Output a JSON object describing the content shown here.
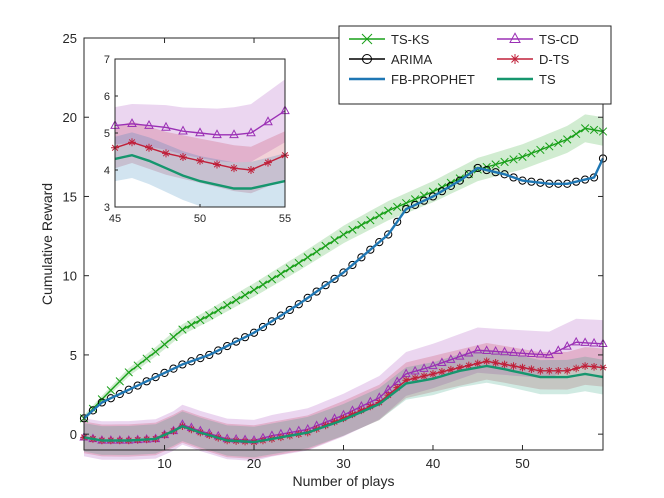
{
  "chart_data": {
    "type": "line",
    "xlabel": "Number of plays",
    "ylabel": "Cumulative Reward",
    "xlim": [
      1,
      59
    ],
    "ylim": [
      -1,
      25
    ],
    "xticks": [
      "10",
      "20",
      "30",
      "40",
      "50"
    ],
    "yticks": [
      "0",
      "5",
      "10",
      "15",
      "20",
      "25"
    ],
    "legend_position": "top-right",
    "grid": false,
    "series": [
      {
        "name": "TS-KS",
        "color": "#19a019",
        "marker": "x",
        "anchors": [
          [
            1,
            1.0
          ],
          [
            3,
            2.2
          ],
          [
            6,
            3.9
          ],
          [
            9,
            5.2
          ],
          [
            12,
            6.6
          ],
          [
            15,
            7.5
          ],
          [
            20,
            9.1
          ],
          [
            25,
            10.8
          ],
          [
            30,
            12.6
          ],
          [
            35,
            14.1
          ],
          [
            40,
            15.3
          ],
          [
            45,
            16.7
          ],
          [
            50,
            17.5
          ],
          [
            55,
            18.6
          ],
          [
            57,
            19.3
          ],
          [
            59,
            19.1
          ]
        ],
        "band": [
          0.2,
          0.9
        ]
      },
      {
        "name": "ARIMA",
        "color": "#000000",
        "marker": "circle",
        "anchors": [
          [
            1,
            1.0
          ],
          [
            3,
            2.0
          ],
          [
            6,
            2.8
          ],
          [
            9,
            3.6
          ],
          [
            12,
            4.4
          ],
          [
            15,
            5.0
          ],
          [
            20,
            6.4
          ],
          [
            25,
            8.2
          ],
          [
            30,
            10.2
          ],
          [
            35,
            12.6
          ],
          [
            37,
            14.2
          ],
          [
            40,
            15.0
          ],
          [
            43,
            16.0
          ],
          [
            45,
            16.8
          ],
          [
            48,
            16.4
          ],
          [
            50,
            16.0
          ],
          [
            53,
            15.8
          ],
          [
            55,
            15.8
          ],
          [
            58,
            16.2
          ],
          [
            59,
            17.4
          ]
        ],
        "band": null
      },
      {
        "name": "FB-PROPHET",
        "color": "#1f77b4",
        "marker": "none",
        "anchors": [
          [
            1,
            1.0
          ],
          [
            3,
            2.0
          ],
          [
            6,
            2.8
          ],
          [
            9,
            3.6
          ],
          [
            12,
            4.4
          ],
          [
            15,
            5.0
          ],
          [
            20,
            6.4
          ],
          [
            25,
            8.2
          ],
          [
            30,
            10.2
          ],
          [
            35,
            12.6
          ],
          [
            37,
            14.2
          ],
          [
            40,
            15.0
          ],
          [
            43,
            16.0
          ],
          [
            45,
            16.8
          ],
          [
            48,
            16.4
          ],
          [
            50,
            16.0
          ],
          [
            53,
            15.8
          ],
          [
            55,
            15.8
          ],
          [
            58,
            16.2
          ],
          [
            59,
            17.4
          ]
        ],
        "band": null
      },
      {
        "name": "TS-CD",
        "color": "#9b30b5",
        "marker": "triangle",
        "anchors": [
          [
            1,
            -0.2
          ],
          [
            3,
            -0.4
          ],
          [
            6,
            -0.4
          ],
          [
            9,
            -0.3
          ],
          [
            11,
            0.2
          ],
          [
            12,
            0.6
          ],
          [
            14,
            0.2
          ],
          [
            17,
            -0.3
          ],
          [
            20,
            -0.4
          ],
          [
            22,
            -0.1
          ],
          [
            26,
            0.3
          ],
          [
            30,
            1.2
          ],
          [
            34,
            2.3
          ],
          [
            37,
            3.8
          ],
          [
            40,
            4.3
          ],
          [
            45,
            5.3
          ],
          [
            50,
            5.1
          ],
          [
            53,
            5.0
          ],
          [
            56,
            5.8
          ],
          [
            59,
            5.7
          ]
        ],
        "band": [
          1.2,
          1.5
        ]
      },
      {
        "name": "D-TS",
        "color": "#c0203a",
        "marker": "star",
        "anchors": [
          [
            1,
            -0.2
          ],
          [
            3,
            -0.4
          ],
          [
            6,
            -0.4
          ],
          [
            9,
            -0.3
          ],
          [
            11,
            0.2
          ],
          [
            12,
            0.5
          ],
          [
            14,
            0.1
          ],
          [
            17,
            -0.4
          ],
          [
            20,
            -0.5
          ],
          [
            22,
            -0.3
          ],
          [
            26,
            0.1
          ],
          [
            30,
            1.0
          ],
          [
            34,
            2.0
          ],
          [
            37,
            3.4
          ],
          [
            40,
            3.8
          ],
          [
            43,
            4.2
          ],
          [
            46,
            4.6
          ],
          [
            48,
            4.4
          ],
          [
            52,
            4.0
          ],
          [
            55,
            4.0
          ],
          [
            57,
            4.3
          ],
          [
            59,
            4.2
          ]
        ],
        "band": [
          1.0,
          1.2
        ]
      },
      {
        "name": "TS",
        "color": "#16966e",
        "marker": "none",
        "anchors": [
          [
            1,
            -0.2
          ],
          [
            3,
            -0.4
          ],
          [
            6,
            -0.4
          ],
          [
            9,
            -0.3
          ],
          [
            11,
            0.2
          ],
          [
            12,
            0.5
          ],
          [
            14,
            0.1
          ],
          [
            17,
            -0.4
          ],
          [
            20,
            -0.5
          ],
          [
            22,
            -0.3
          ],
          [
            26,
            0.1
          ],
          [
            30,
            0.9
          ],
          [
            34,
            1.9
          ],
          [
            37,
            3.2
          ],
          [
            40,
            3.5
          ],
          [
            43,
            4.0
          ],
          [
            46,
            4.3
          ],
          [
            48,
            4.1
          ],
          [
            52,
            3.6
          ],
          [
            55,
            3.6
          ],
          [
            57,
            3.8
          ],
          [
            59,
            3.6
          ]
        ],
        "band": [
          0.9,
          1.1
        ]
      }
    ],
    "inset": {
      "xlim": [
        45,
        55
      ],
      "ylim": [
        3,
        7
      ],
      "xticks": [
        "45",
        "50",
        "55"
      ],
      "yticks": [
        "3",
        "4",
        "5",
        "6",
        "7"
      ],
      "series": [
        {
          "name": "TS-CD",
          "points": [
            [
              45,
              5.2
            ],
            [
              46,
              5.25
            ],
            [
              47,
              5.2
            ],
            [
              48,
              5.15
            ],
            [
              49,
              5.05
            ],
            [
              50,
              5.0
            ],
            [
              51,
              4.95
            ],
            [
              52,
              4.95
            ],
            [
              53,
              5.0
            ],
            [
              54,
              5.3
            ],
            [
              55,
              5.6
            ]
          ],
          "band": [
            0.5,
            0.85
          ]
        },
        {
          "name": "D-TS",
          "points": [
            [
              45,
              4.6
            ],
            [
              46,
              4.75
            ],
            [
              47,
              4.6
            ],
            [
              48,
              4.45
            ],
            [
              49,
              4.35
            ],
            [
              50,
              4.25
            ],
            [
              51,
              4.15
            ],
            [
              52,
              4.05
            ],
            [
              53,
              4.0
            ],
            [
              54,
              4.2
            ],
            [
              55,
              4.4
            ]
          ],
          "band": [
            0.55,
            0.65
          ]
        },
        {
          "name": "TS",
          "points": [
            [
              45,
              4.3
            ],
            [
              46,
              4.4
            ],
            [
              47,
              4.25
            ],
            [
              48,
              4.05
            ],
            [
              49,
              3.85
            ],
            [
              50,
              3.7
            ],
            [
              51,
              3.6
            ],
            [
              52,
              3.5
            ],
            [
              53,
              3.5
            ],
            [
              54,
              3.6
            ],
            [
              55,
              3.7
            ]
          ],
          "band": [
            0.6,
            0.75
          ]
        }
      ]
    }
  }
}
